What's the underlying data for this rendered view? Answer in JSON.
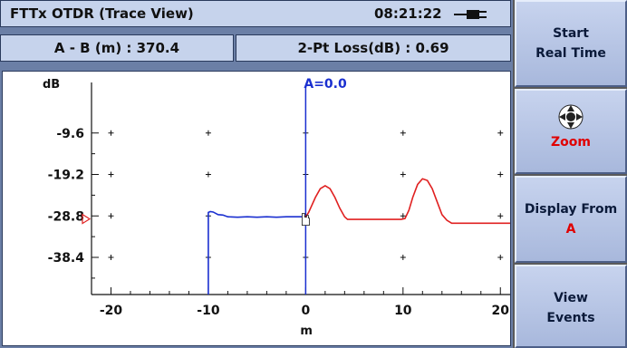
{
  "header": {
    "title": "FTTx OTDR (Trace View)",
    "time": "08:21:22"
  },
  "info": {
    "ab_distance": "A - B (m) : 370.4",
    "two_pt_loss": "2-Pt Loss(dB) :  0.69"
  },
  "sidebar": {
    "start_line1": "Start",
    "start_line2": "Real Time",
    "zoom_label": "Zoom",
    "display_line1": "Display From",
    "display_value": "A",
    "view_line1": "View",
    "view_line2": "Events"
  },
  "chart_data": {
    "type": "line",
    "ylabel": "dB",
    "xlabel": "m",
    "xlim": [
      -22,
      21
    ],
    "ylim": [
      -47,
      0
    ],
    "x_ticks": [
      -20,
      -10,
      0,
      10,
      20
    ],
    "y_ticks": [
      -9.6,
      -19.2,
      -28.8,
      -38.4
    ],
    "cursor": {
      "label": "A=0.0",
      "x": 0
    },
    "marker_left": {
      "y": -29.5
    },
    "series": [
      {
        "color": "#1a2fd0",
        "x": [
          -10,
          -10,
          -9.8,
          -9.5,
          -9,
          -8.5,
          -8,
          -7,
          -6,
          -5,
          -4,
          -3,
          -2,
          -1,
          0,
          0.2
        ],
        "y": [
          -47,
          -28.0,
          -27.8,
          -27.9,
          -28.5,
          -28.6,
          -29.0,
          -29.1,
          -29.0,
          -29.1,
          -29.0,
          -29.1,
          -29.0,
          -29.0,
          -29.0,
          -29.0
        ]
      },
      {
        "color": "#e02020",
        "x": [
          0,
          0.3,
          0.6,
          1,
          1.5,
          2,
          2.5,
          3,
          3.5,
          4,
          4.3,
          6,
          8,
          9.8,
          10.2,
          10.6,
          11,
          11.5,
          12,
          12.5,
          13,
          13.5,
          14,
          14.5,
          15,
          17,
          19,
          21
        ],
        "y": [
          -29.0,
          -28.0,
          -26.5,
          -24.5,
          -22.5,
          -21.8,
          -22.5,
          -24.5,
          -27.0,
          -29.0,
          -29.6,
          -29.6,
          -29.6,
          -29.6,
          -29.4,
          -27.5,
          -24.5,
          -21.5,
          -20.2,
          -20.6,
          -22.5,
          -25.5,
          -28.5,
          -29.8,
          -30.5,
          -30.5,
          -30.5,
          -30.5
        ]
      }
    ],
    "grid": "plus-markers"
  }
}
